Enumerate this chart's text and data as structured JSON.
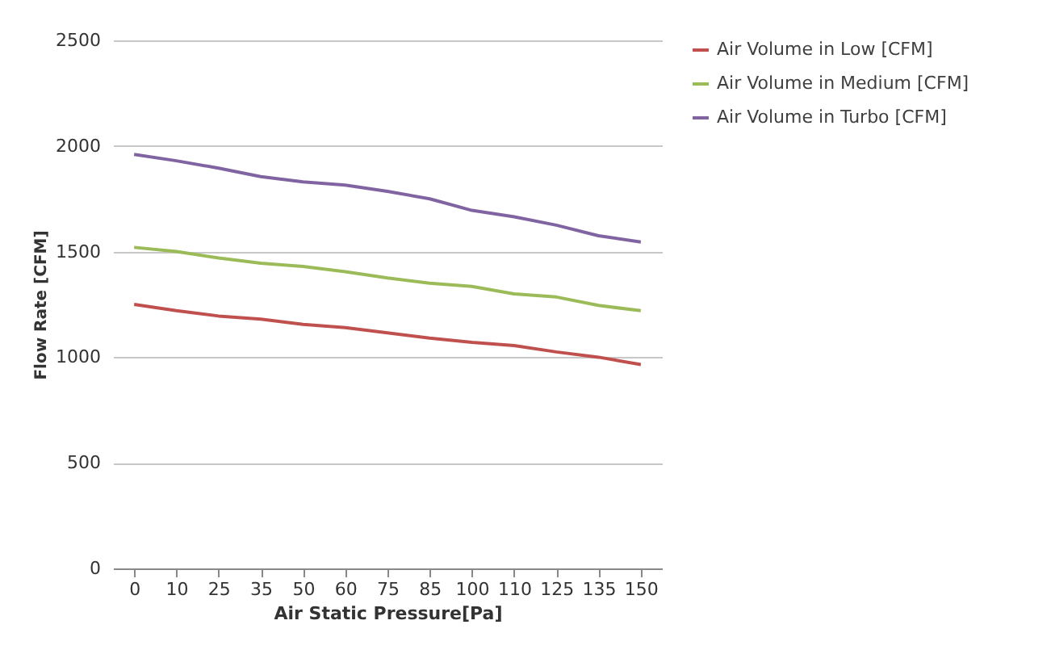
{
  "chart_data": {
    "type": "line",
    "xlabel": "Air Static Pressure[Pa]",
    "ylabel": "Flow Rate [CFM]",
    "categories": [
      "0",
      "10",
      "25",
      "35",
      "50",
      "60",
      "75",
      "85",
      "100",
      "110",
      "125",
      "135",
      "150"
    ],
    "series": [
      {
        "name": "Air Volume in Low [CFM]",
        "color": "#c0504d",
        "values": [
          1250,
          1220,
          1195,
          1180,
          1155,
          1140,
          1115,
          1090,
          1070,
          1055,
          1025,
          1000,
          965
        ]
      },
      {
        "name": "Air Volume in Medium [CFM]",
        "color": "#9bbb59",
        "values": [
          1520,
          1500,
          1470,
          1445,
          1430,
          1405,
          1375,
          1350,
          1335,
          1300,
          1285,
          1245,
          1220
        ]
      },
      {
        "name": "Air Volume in Turbo [CFM]",
        "color": "#8064a2",
        "values": [
          1960,
          1930,
          1895,
          1855,
          1830,
          1815,
          1785,
          1750,
          1695,
          1665,
          1625,
          1575,
          1545
        ]
      }
    ],
    "ylim": [
      0,
      2500
    ],
    "yticks": [
      0,
      500,
      1000,
      1500,
      2000,
      2500
    ],
    "grid": "y",
    "legend": "right",
    "marker": "none",
    "line_style": "solid"
  }
}
